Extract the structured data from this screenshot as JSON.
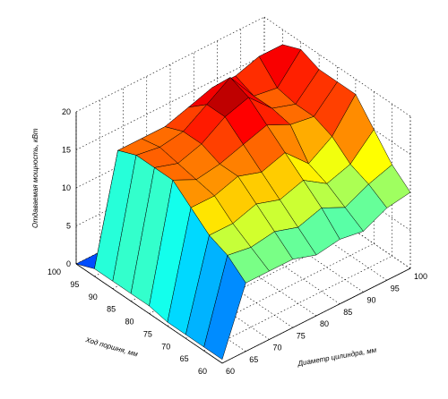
{
  "chart_data": {
    "type": "surface3d",
    "xlabel": "Диаметр цилиндра, мм",
    "ylabel": "Ход поршня, мм",
    "zlabel": "Отдаваемая мощность, кВт",
    "x": [
      60,
      65,
      70,
      75,
      80,
      85,
      90,
      95,
      100
    ],
    "y": [
      100,
      95,
      90,
      85,
      80,
      75,
      70,
      65,
      60
    ],
    "x_ticks": [
      "60",
      "65",
      "70",
      "75",
      "80",
      "85",
      "90",
      "95",
      "100"
    ],
    "y_ticks": [
      "100",
      "95",
      "90",
      "85",
      "80",
      "75",
      "70",
      "65",
      "60"
    ],
    "z_ticks": [
      "0",
      "5",
      "10",
      "15",
      "20"
    ],
    "zlim": [
      0,
      20
    ],
    "colormap": "jet",
    "grid": true,
    "z": [
      [
        0,
        0,
        0,
        0,
        0,
        0,
        0,
        0,
        0
      ],
      [
        1,
        15,
        15,
        15,
        16,
        17,
        17,
        18,
        18
      ],
      [
        1,
        16,
        15.5,
        16,
        18,
        20,
        16,
        15.5,
        19
      ],
      [
        1,
        16,
        15,
        16,
        18,
        19,
        16,
        15,
        18
      ],
      [
        1,
        16,
        14.5,
        15,
        16,
        17,
        15.5,
        15,
        18
      ],
      [
        0.5,
        14,
        14,
        15,
        14,
        15,
        12,
        14,
        18
      ],
      [
        0.5,
        12,
        12,
        13,
        12,
        13,
        11,
        12,
        15
      ],
      [
        0.5,
        11,
        10.5,
        11,
        10,
        11,
        9.5,
        11,
        12
      ],
      [
        0.5,
        9,
        9,
        9,
        8,
        8.5,
        8,
        9.5,
        10
      ]
    ]
  }
}
